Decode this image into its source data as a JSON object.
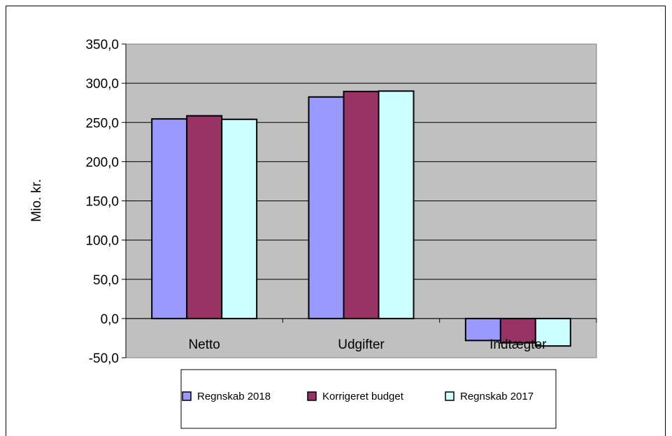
{
  "chart_data": {
    "type": "bar",
    "categories": [
      "Netto",
      "Udgifter",
      "Indtægter"
    ],
    "series": [
      {
        "name": "Regnskab 2018",
        "color": "#9999ff",
        "values": [
          254.5,
          282.5,
          -28.0
        ]
      },
      {
        "name": "Korrigeret budget",
        "color": "#993366",
        "values": [
          258.5,
          289.5,
          -31.0
        ]
      },
      {
        "name": "Regnskab 2017",
        "color": "#ccffff",
        "values": [
          254.0,
          290.0,
          -35.0
        ]
      }
    ],
    "ylabel": "Mio. kr.",
    "ylim": [
      -50,
      350
    ],
    "yticks": [
      350,
      300,
      250,
      200,
      150,
      100,
      50,
      0,
      -50
    ],
    "ytick_labels": [
      "350,0",
      "300,0",
      "250,0",
      "200,0",
      "150,0",
      "100,0",
      "50,0",
      "0,0",
      "-50,0"
    ],
    "plot_background": "#c0c0c0",
    "grid": true,
    "legend_position": "bottom"
  }
}
